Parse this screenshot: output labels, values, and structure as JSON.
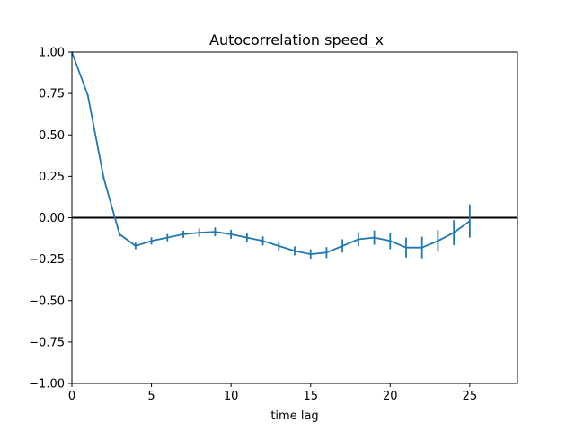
{
  "chart_data": {
    "type": "line",
    "title": "Autocorrelation speed_x",
    "xlabel": "time lag",
    "ylabel": "",
    "xlim": [
      0,
      28
    ],
    "ylim": [
      -1.0,
      1.0
    ],
    "xticks": [
      "0",
      "5",
      "10",
      "15",
      "20",
      "25"
    ],
    "yticks": [
      "1.00",
      "0.75",
      "0.50",
      "0.25",
      "0.00",
      "−0.25",
      "−0.50",
      "−0.75",
      "−1.00"
    ],
    "grid": false,
    "legend": "none",
    "series": [
      {
        "color": "#1f77b4",
        "x": [
          0,
          1,
          2,
          3,
          4,
          5,
          6,
          7,
          8,
          9,
          10,
          11,
          12,
          13,
          14,
          15,
          16,
          17,
          18,
          19,
          20,
          21,
          22,
          23,
          24,
          25
        ],
        "y": [
          1.0,
          0.74,
          0.24,
          -0.1,
          -0.17,
          -0.14,
          -0.12,
          -0.1,
          -0.09,
          -0.085,
          -0.1,
          -0.12,
          -0.14,
          -0.17,
          -0.2,
          -0.22,
          -0.21,
          -0.17,
          -0.13,
          -0.12,
          -0.14,
          -0.18,
          -0.18,
          -0.14,
          -0.09,
          -0.02
        ],
        "error": [
          0.0,
          0.005,
          0.01,
          0.012,
          0.02,
          0.022,
          0.022,
          0.022,
          0.025,
          0.027,
          0.027,
          0.027,
          0.027,
          0.027,
          0.027,
          0.03,
          0.033,
          0.04,
          0.043,
          0.043,
          0.05,
          0.06,
          0.065,
          0.065,
          0.075,
          0.1
        ]
      }
    ],
    "reference_line": {
      "y": 0.0,
      "color": "#000000"
    }
  }
}
